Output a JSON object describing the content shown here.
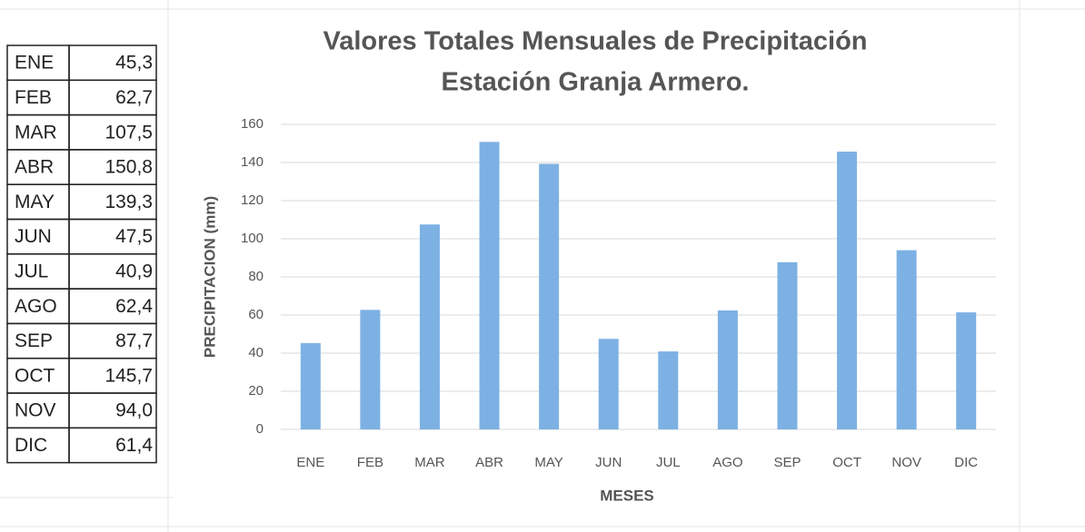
{
  "table": {
    "rows": [
      [
        "ENE",
        "45,3"
      ],
      [
        "FEB",
        "62,7"
      ],
      [
        "MAR",
        "107,5"
      ],
      [
        "ABR",
        "150,8"
      ],
      [
        "MAY",
        "139,3"
      ],
      [
        "JUN",
        "47,5"
      ],
      [
        "JUL",
        "40,9"
      ],
      [
        "AGO",
        "62,4"
      ],
      [
        "SEP",
        "87,7"
      ],
      [
        "OCT",
        "145,7"
      ],
      [
        "NOV",
        "94,0"
      ],
      [
        "DIC",
        "61,4"
      ]
    ]
  },
  "chart_data": {
    "type": "bar",
    "title": "Valores Totales Mensuales de  Precipitación",
    "subtitle": "Estación Granja Armero.",
    "y_label": "PRECIPITACION  (mm)",
    "x_label": "MESES",
    "categories": [
      "ENE",
      "FEB",
      "MAR",
      "ABR",
      "MAY",
      "JUN",
      "JUL",
      "AGO",
      "SEP",
      "OCT",
      "NOV",
      "DIC"
    ],
    "values": [
      45.3,
      62.7,
      107.5,
      150.8,
      139.3,
      47.5,
      40.9,
      62.4,
      87.7,
      145.7,
      94.0,
      61.4
    ],
    "color": "#7db1e4",
    "ylim": [
      0,
      160
    ],
    "yticks": [
      0,
      20,
      40,
      60,
      80,
      100,
      120,
      140,
      160
    ],
    "grid": true
  }
}
